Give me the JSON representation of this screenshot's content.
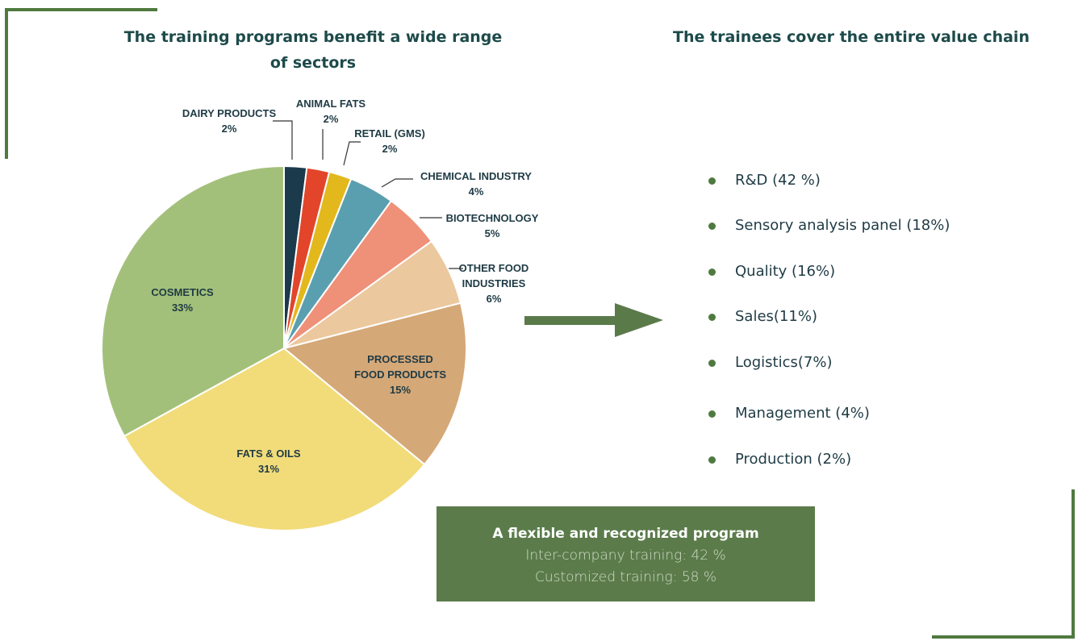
{
  "chart_data": {
    "type": "pie",
    "title": "The training programs benefit a wide range of sectors",
    "categories": [
      "DAIRY PRODUCTS",
      "ANIMAL FATS",
      "RETAIL (GMS)",
      "CHEMICAL INDUSTRY",
      "BIOTECHNOLOGY",
      "OTHER FOOD INDUSTRIES",
      "PROCESSED FOOD PRODUCTS",
      "FATS & OILS",
      "COSMETICS"
    ],
    "values": [
      2,
      2,
      2,
      4,
      5,
      6,
      15,
      31,
      33
    ],
    "value_labels": [
      "2%",
      "2%",
      "2%",
      "4%",
      "5%",
      "6%",
      "15%",
      "31%",
      "33%"
    ],
    "colors": [
      "#1b3a4b",
      "#e2452a",
      "#e3b81c",
      "#5a9fb0",
      "#ef9079",
      "#ecc89e",
      "#d5a878",
      "#f2dc7a",
      "#a3c07a"
    ]
  },
  "value_chain": {
    "title": "The trainees cover the entire value chain",
    "items": [
      "R&D (42 %)",
      "Sensory analysis panel (18%)",
      "Quality (16%)",
      "Sales(11%)",
      "Logistics(7%)",
      "Management (4%)",
      "Production (2%)"
    ]
  },
  "program_box": {
    "title": "A flexible and recognized program",
    "lines": [
      "Inter-company training: 42 %",
      "Customized training: 58 %"
    ]
  }
}
